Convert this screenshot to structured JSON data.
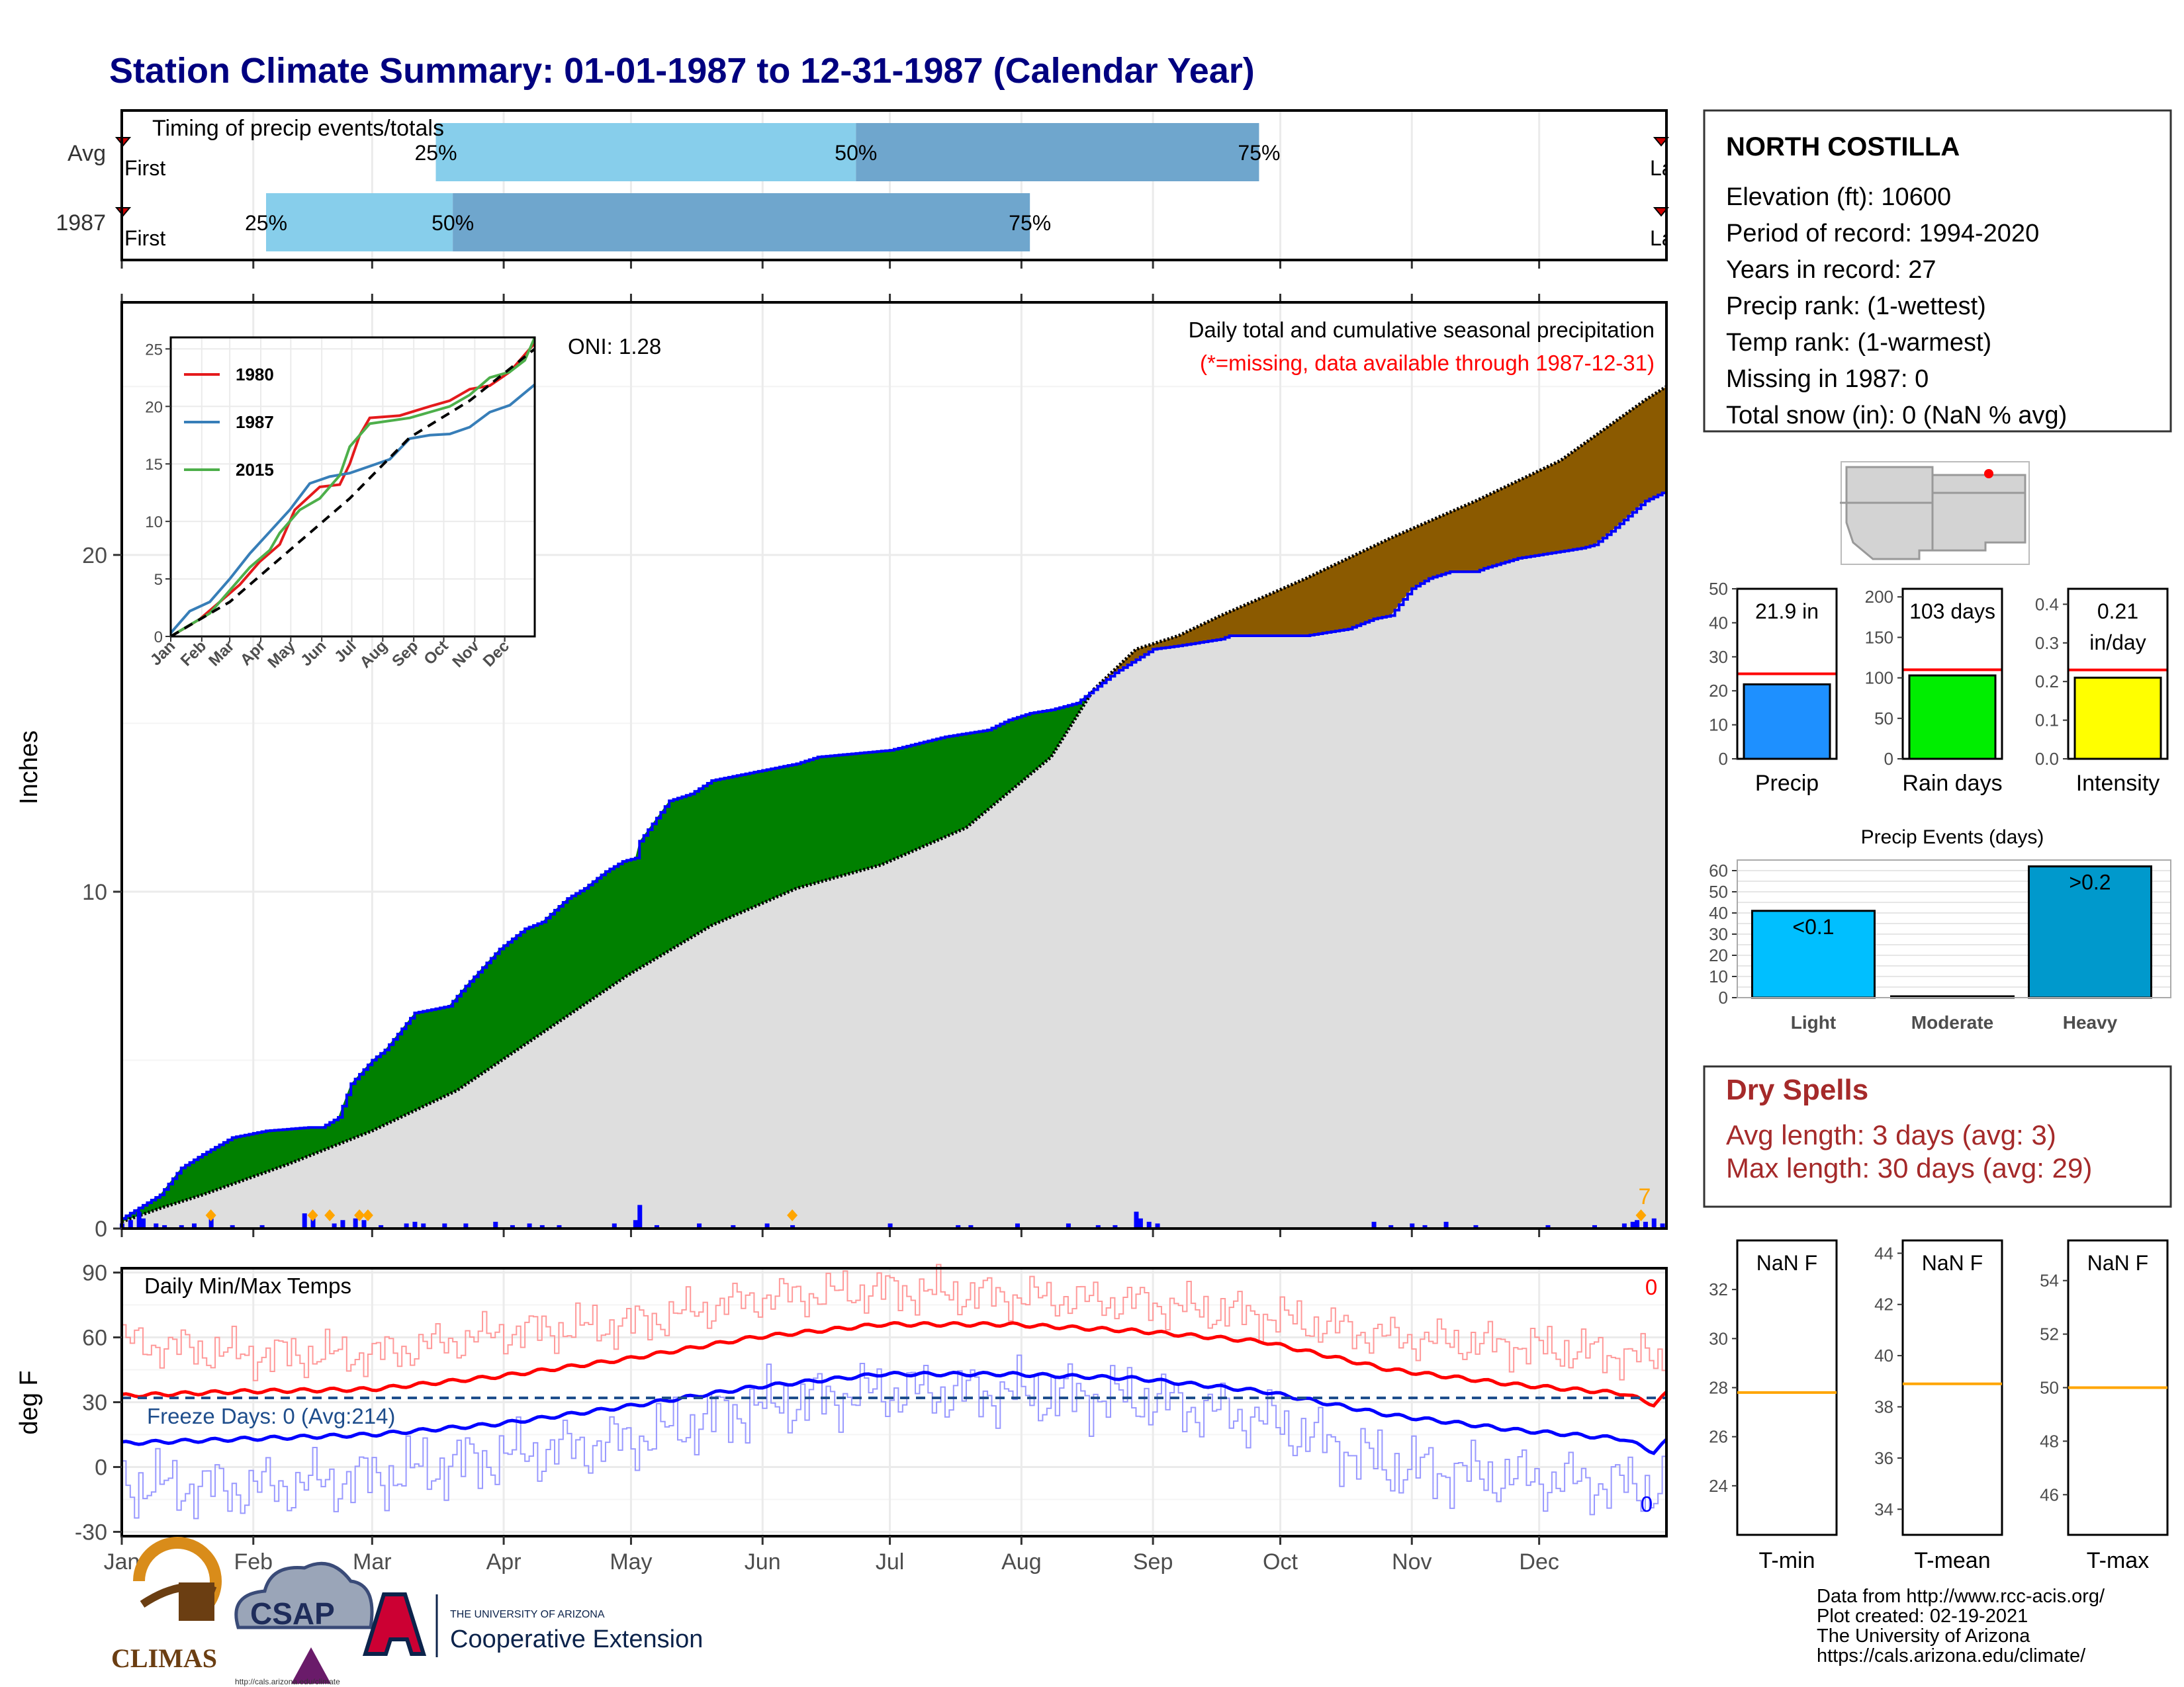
{
  "title": "Station Climate Summary: 01-01-1987 to 12-31-1987 (Calendar Year)",
  "timing": {
    "label": "Timing of precip events/totals",
    "rows": [
      {
        "name": "Avg",
        "q25": 75,
        "q50": 174,
        "q75": 269,
        "first_label": "First",
        "last_label": "Last"
      },
      {
        "name": "1987",
        "q25": 35,
        "q50": 79,
        "q75": 215,
        "first_label": "First",
        "last_label": "Last"
      }
    ],
    "q_labels": [
      "25%",
      "50%",
      "75%"
    ],
    "colors": {
      "light": "#87ceeb",
      "dark": "#6fa6cd"
    }
  },
  "station": {
    "name": "NORTH COSTILLA",
    "lines": [
      "Elevation (ft): 10600",
      "Period of record: 1994-2020",
      "Years in record: 27",
      "Precip rank:  (1-wettest)",
      "Temp rank:  (1-warmest)",
      "Missing in 1987: 0",
      "Total snow (in): 0 (NaN % avg)"
    ]
  },
  "main_chart": {
    "ylabel": "Inches",
    "yticks": [
      "0",
      "10",
      "20"
    ],
    "oni": "ONI: 1.28",
    "caption": "Daily total and cumulative seasonal precipitation",
    "missing_note": "(*=missing, data available through 1987-12-31)",
    "corner_count": "7",
    "colors": {
      "above": "#008000",
      "below": "#8b5a00",
      "avg_fill": "#dedede",
      "obs": "#0000ff"
    }
  },
  "chart_data": [
    {
      "type": "area",
      "name": "cumulative precipitation",
      "x_unit": "day of year",
      "ylabel": "Inches",
      "ylim": [
        0,
        27.5
      ],
      "series": [
        {
          "name": "observed 1987",
          "x": [
            1,
            10,
            15,
            20,
            27,
            35,
            45,
            48,
            52,
            55,
            60,
            63,
            70,
            78,
            82,
            90,
            96,
            100,
            106,
            110,
            115,
            119,
            122,
            123,
            130,
            135,
            140,
            160,
            165,
            182,
            195,
            205,
            210,
            215,
            220,
            226,
            230,
            232,
            235,
            244,
            250,
            255,
            260,
            262,
            265,
            268,
            275,
            280,
            290,
            296,
            300,
            305,
            309,
            314,
            320,
            322,
            330,
            340,
            345,
            348,
            352,
            360,
            365
          ],
          "y": [
            0.3,
            1.0,
            1.8,
            2.2,
            2.7,
            2.9,
            3.0,
            3.0,
            3.3,
            4.3,
            5.0,
            5.3,
            6.4,
            6.6,
            7.2,
            8.3,
            8.9,
            9.1,
            9.8,
            10.1,
            10.6,
            10.9,
            11.0,
            11.5,
            12.7,
            12.9,
            13.3,
            13.8,
            14.0,
            14.2,
            14.6,
            14.8,
            15.1,
            15.3,
            15.4,
            15.6,
            16.0,
            16.2,
            16.5,
            17.2,
            17.3,
            17.4,
            17.5,
            17.6,
            17.6,
            17.6,
            17.6,
            17.6,
            17.8,
            18.1,
            18.2,
            19.0,
            19.3,
            19.5,
            19.5,
            19.6,
            19.9,
            20.1,
            20.2,
            20.3,
            20.7,
            21.6,
            21.9
          ]
        },
        {
          "name": "average",
          "x": [
            1,
            10,
            20,
            40,
            60,
            80,
            100,
            120,
            140,
            160,
            180,
            200,
            220,
            230,
            240,
            250,
            260,
            280,
            300,
            320,
            340,
            360,
            365
          ],
          "y": [
            0.2,
            0.6,
            1.0,
            1.9,
            2.9,
            4.1,
            5.8,
            7.5,
            9.0,
            10.1,
            10.8,
            11.9,
            14.0,
            16.0,
            17.2,
            17.6,
            18.2,
            19.3,
            20.5,
            21.6,
            22.8,
            24.6,
            25.0
          ]
        }
      ],
      "daily_bars": [
        {
          "x": 1,
          "y": 0.15
        },
        {
          "x": 3,
          "y": 0.25
        },
        {
          "x": 5,
          "y": 0.5
        },
        {
          "x": 6,
          "y": 0.3
        },
        {
          "x": 9,
          "y": 0.15
        },
        {
          "x": 11,
          "y": 0.1
        },
        {
          "x": 15,
          "y": 0.1
        },
        {
          "x": 18,
          "y": 0.15
        },
        {
          "x": 22,
          "y": 0.3
        },
        {
          "x": 27,
          "y": 0.1
        },
        {
          "x": 34,
          "y": 0.1
        },
        {
          "x": 44,
          "y": 0.45
        },
        {
          "x": 46,
          "y": 0.3
        },
        {
          "x": 51,
          "y": 0.15
        },
        {
          "x": 53,
          "y": 0.25
        },
        {
          "x": 56,
          "y": 0.3
        },
        {
          "x": 58,
          "y": 0.25
        },
        {
          "x": 62,
          "y": 0.1
        },
        {
          "x": 68,
          "y": 0.15
        },
        {
          "x": 70,
          "y": 0.2
        },
        {
          "x": 72,
          "y": 0.15
        },
        {
          "x": 77,
          "y": 0.15
        },
        {
          "x": 82,
          "y": 0.15
        },
        {
          "x": 89,
          "y": 0.2
        },
        {
          "x": 93,
          "y": 0.1
        },
        {
          "x": 97,
          "y": 0.15
        },
        {
          "x": 100,
          "y": 0.1
        },
        {
          "x": 104,
          "y": 0.1
        },
        {
          "x": 117,
          "y": 0.15
        },
        {
          "x": 122,
          "y": 0.25
        },
        {
          "x": 123,
          "y": 0.7
        },
        {
          "x": 127,
          "y": 0.1
        },
        {
          "x": 137,
          "y": 0.15
        },
        {
          "x": 145,
          "y": 0.1
        },
        {
          "x": 153,
          "y": 0.15
        },
        {
          "x": 159,
          "y": 0.1
        },
        {
          "x": 182,
          "y": 0.15
        },
        {
          "x": 198,
          "y": 0.1
        },
        {
          "x": 201,
          "y": 0.1
        },
        {
          "x": 212,
          "y": 0.15
        },
        {
          "x": 224,
          "y": 0.15
        },
        {
          "x": 231,
          "y": 0.1
        },
        {
          "x": 235,
          "y": 0.1
        },
        {
          "x": 240,
          "y": 0.5
        },
        {
          "x": 241,
          "y": 0.3
        },
        {
          "x": 243,
          "y": 0.2
        },
        {
          "x": 245,
          "y": 0.15
        },
        {
          "x": 296,
          "y": 0.2
        },
        {
          "x": 300,
          "y": 0.1
        },
        {
          "x": 305,
          "y": 0.15
        },
        {
          "x": 308,
          "y": 0.1
        },
        {
          "x": 313,
          "y": 0.2
        },
        {
          "x": 320,
          "y": 0.1
        },
        {
          "x": 337,
          "y": 0.1
        },
        {
          "x": 348,
          "y": 0.1
        },
        {
          "x": 355,
          "y": 0.15
        },
        {
          "x": 357,
          "y": 0.2
        },
        {
          "x": 358,
          "y": 0.25
        },
        {
          "x": 360,
          "y": 0.2
        },
        {
          "x": 362,
          "y": 0.3
        },
        {
          "x": 364,
          "y": 0.15
        }
      ],
      "markers": [
        22,
        46,
        50,
        57,
        59,
        159,
        359
      ]
    },
    {
      "type": "line",
      "name": "inset cumulative comparison",
      "xlabels": [
        "Jan",
        "Feb",
        "Mar",
        "Apr",
        "May",
        "Jun",
        "Jul",
        "Aug",
        "Sep",
        "Oct",
        "Nov",
        "Dec"
      ],
      "ylim": [
        0,
        26
      ],
      "yticks": [
        "0",
        "5",
        "10",
        "15",
        "20",
        "25"
      ],
      "series": [
        {
          "name": "1980",
          "color": "#e41a1c",
          "x": [
            1,
            30,
            50,
            70,
            90,
            110,
            125,
            150,
            170,
            180,
            190,
            200,
            230,
            260,
            280,
            300,
            320,
            340,
            365
          ],
          "y": [
            0,
            1.5,
            3.0,
            4.5,
            6.5,
            8.0,
            11.0,
            13.0,
            13.2,
            15.0,
            17.5,
            19.0,
            19.2,
            20.0,
            20.5,
            21.5,
            21.8,
            23.0,
            25.5
          ]
        },
        {
          "name": "1987",
          "color": "#377eb8",
          "x": [
            1,
            20,
            40,
            60,
            80,
            100,
            120,
            140,
            160,
            180,
            200,
            220,
            240,
            260,
            280,
            300,
            320,
            340,
            365
          ],
          "y": [
            0.3,
            2.2,
            3.0,
            5.0,
            7.2,
            9.1,
            11.0,
            13.3,
            13.9,
            14.2,
            14.8,
            15.4,
            17.2,
            17.5,
            17.6,
            18.2,
            19.5,
            20.1,
            21.9
          ]
        },
        {
          "name": "2015",
          "color": "#4daf4a",
          "x": [
            1,
            20,
            40,
            60,
            80,
            100,
            110,
            130,
            150,
            170,
            180,
            200,
            240,
            260,
            280,
            300,
            320,
            340,
            355,
            365
          ],
          "y": [
            0,
            1.0,
            2.0,
            4.0,
            6.0,
            7.5,
            9.0,
            11.0,
            12.0,
            14.0,
            16.5,
            18.5,
            19.0,
            19.5,
            20.0,
            21.0,
            22.5,
            23.0,
            24.0,
            26.0
          ]
        },
        {
          "name": "average",
          "color": "#000000",
          "x": [
            1,
            60,
            120,
            180,
            240,
            300,
            365
          ],
          "y": [
            0,
            3,
            7.5,
            12,
            17.3,
            20.5,
            25
          ]
        }
      ]
    },
    {
      "type": "bar",
      "name": "totals",
      "panels": [
        {
          "label": "Precip",
          "value": 21.9,
          "avg": 25.0,
          "text": "21.9 in",
          "ylim": [
            0,
            50
          ],
          "yticks": [
            "0",
            "10",
            "20",
            "30",
            "40",
            "50"
          ],
          "color": "#1e90ff"
        },
        {
          "label": "Rain days",
          "value": 103,
          "avg": 110,
          "text": "103 days",
          "ylim": [
            0,
            210
          ],
          "yticks": [
            "0",
            "50",
            "100",
            "150",
            "200"
          ],
          "color": "#00ee00"
        },
        {
          "label": "Intensity",
          "value": 0.21,
          "avg": 0.23,
          "text": "0.21 in/day",
          "ylim": [
            0,
            0.44
          ],
          "yticks": [
            "0.0",
            "0.1",
            "0.2",
            "0.3",
            "0.4"
          ],
          "color": "#ffff00"
        }
      ]
    },
    {
      "type": "bar",
      "name": "precip events",
      "title": "Precip Events (days)",
      "categories": [
        "Light",
        "Moderate",
        "Heavy"
      ],
      "values": [
        41,
        0,
        62
      ],
      "bar_labels": [
        "<0.1",
        "",
        ">0.2"
      ],
      "colors": [
        "#00bfff",
        "#555555",
        "#0099cc"
      ],
      "ylim": [
        0,
        65
      ],
      "yticks": [
        "0",
        "10",
        "20",
        "30",
        "40",
        "50",
        "60"
      ]
    },
    {
      "type": "line",
      "name": "daily temperatures",
      "ylabel": "deg F",
      "ylim": [
        -32,
        92
      ],
      "yticks": [
        "-30",
        "0",
        "30",
        "60",
        "90"
      ],
      "xlabels": [
        "Jan",
        "Feb",
        "Mar",
        "Apr",
        "May",
        "Jun",
        "Jul",
        "Aug",
        "Sep",
        "Oct",
        "Nov",
        "Dec"
      ],
      "freeze_line": 32,
      "series": [
        {
          "name": "avg max",
          "color": "#ff0000",
          "x": [
            1,
            30,
            60,
            90,
            120,
            150,
            180,
            210,
            240,
            270,
            300,
            330,
            355,
            362,
            365
          ],
          "y": [
            33,
            35,
            36,
            42,
            50,
            60,
            66,
            66,
            63,
            58,
            45,
            38,
            34,
            29,
            34
          ]
        },
        {
          "name": "avg min",
          "color": "#0000ff",
          "x": [
            1,
            30,
            60,
            90,
            120,
            150,
            180,
            210,
            240,
            270,
            300,
            330,
            355,
            362,
            365
          ],
          "y": [
            11,
            13,
            15,
            20,
            28,
            37,
            43,
            43,
            41,
            35,
            24,
            17,
            13,
            7,
            12
          ]
        },
        {
          "name": "daily max",
          "color": "#ff9999",
          "x": [
            1,
            30,
            60,
            90,
            120,
            150,
            180,
            210,
            240,
            270,
            300,
            330,
            365
          ],
          "y": [
            58,
            52,
            52,
            62,
            66,
            78,
            82,
            79,
            76,
            70,
            60,
            56,
            50
          ]
        },
        {
          "name": "daily min",
          "color": "#9999ff",
          "x": [
            1,
            30,
            60,
            90,
            120,
            150,
            180,
            210,
            240,
            270,
            300,
            330,
            365
          ],
          "y": [
            -8,
            -10,
            -5,
            5,
            12,
            28,
            35,
            34,
            32,
            22,
            0,
            -5,
            -10
          ]
        }
      ]
    },
    {
      "type": "bar",
      "name": "temperature panels",
      "panels": [
        {
          "label": "T-min",
          "text": "NaN F",
          "avg": 27.8,
          "ylim": [
            22,
            34
          ],
          "yticks": [
            "24",
            "26",
            "28",
            "30",
            "32"
          ]
        },
        {
          "label": "T-mean",
          "text": "NaN F",
          "avg": 38.9,
          "ylim": [
            33,
            44.5
          ],
          "yticks": [
            "34",
            "36",
            "38",
            "40",
            "42",
            "44"
          ]
        },
        {
          "label": "T-max",
          "text": "NaN F",
          "avg": 50.0,
          "ylim": [
            44.5,
            55.5
          ],
          "yticks": [
            "46",
            "48",
            "50",
            "52",
            "54"
          ]
        }
      ]
    }
  ],
  "temp_chart": {
    "title": "Daily Min/Max Temps",
    "freeze_label": "Freeze Days: 0 (Avg:214)",
    "corner_red": "0",
    "corner_blue": "0"
  },
  "months": [
    "Jan",
    "Feb",
    "Mar",
    "Apr",
    "May",
    "Jun",
    "Jul",
    "Aug",
    "Sep",
    "Oct",
    "Nov",
    "Dec"
  ],
  "dry_spells": {
    "title": "Dry Spells",
    "avg_line": "Avg length: 3 days (avg: 3)",
    "max_line": "Max length: 30 days (avg: 29)",
    "color": "#a52a2a"
  },
  "footer": {
    "lines": [
      "Data from http://www.rcc-acis.org/",
      "Plot created: 02-19-2021",
      "The University of Arizona",
      "https://cals.arizona.edu/climate/"
    ],
    "logos": {
      "climas": "CLIMAS",
      "csap": "CSAP",
      "csap_url": "http://cals.arizona.edu/climate",
      "ua_small": "THE UNIVERSITY OF ARIZONA",
      "ua_big": "Cooperative Extension"
    }
  }
}
